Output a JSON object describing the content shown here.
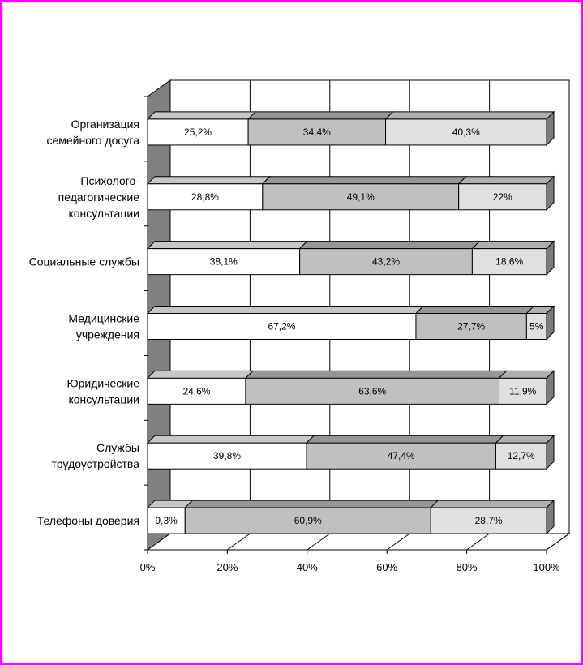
{
  "chart_data": {
    "type": "bar",
    "orientation": "horizontal",
    "stacked": "percent",
    "three_d": true,
    "categories": [
      [
        "Организация",
        "семейного досуга"
      ],
      [
        "Психолого-",
        "педагогические",
        "консультации"
      ],
      [
        "Социальные службы"
      ],
      [
        "Медицинские",
        "учреждения"
      ],
      [
        "Юридические",
        "консультации"
      ],
      [
        "Службы",
        "трудоустройства"
      ],
      [
        "Телефоны доверия"
      ]
    ],
    "series": [
      {
        "color": "#ffffff",
        "values": [
          25.2,
          28.8,
          38.1,
          67.2,
          24.6,
          39.8,
          9.3
        ],
        "labels": [
          "25,2%",
          "28,8%",
          "38,1%",
          "67,2%",
          "24,6%",
          "39,8%",
          "9,3%"
        ]
      },
      {
        "color": "#c0c0c0",
        "values": [
          34.4,
          49.1,
          43.2,
          27.7,
          63.6,
          47.4,
          60.9
        ],
        "labels": [
          "34,4%",
          "49,1%",
          "43,2%",
          "27,7%",
          "63,6%",
          "47,4%",
          "60,9%"
        ]
      },
      {
        "color": "#e0e0e0",
        "values": [
          40.3,
          22,
          18.6,
          5,
          11.9,
          12.7,
          28.7
        ],
        "labels": [
          "40,3%",
          "22%",
          "18,6%",
          "5%",
          "11,9%",
          "12,7%",
          "28,7%"
        ]
      }
    ],
    "x_ticks": [
      "0%",
      "20%",
      "40%",
      "60%",
      "80%",
      "100%"
    ],
    "xlim": [
      0,
      100
    ],
    "grid": true,
    "legend": "none"
  }
}
